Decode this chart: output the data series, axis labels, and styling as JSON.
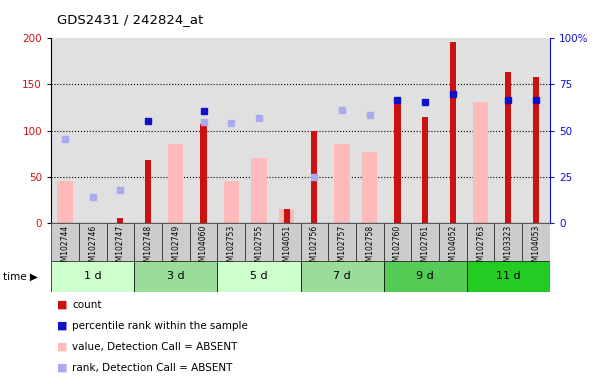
{
  "title": "GDS2431 / 242824_at",
  "samples": [
    "GSM102744",
    "GSM102746",
    "GSM102747",
    "GSM102748",
    "GSM102749",
    "GSM104060",
    "GSM102753",
    "GSM102755",
    "GSM104051",
    "GSM102756",
    "GSM102757",
    "GSM102758",
    "GSM102760",
    "GSM102761",
    "GSM104052",
    "GSM102763",
    "GSM103323",
    "GSM104053"
  ],
  "time_groups": [
    {
      "label": "1 d",
      "start": 0,
      "end": 3
    },
    {
      "label": "3 d",
      "start": 3,
      "end": 6
    },
    {
      "label": "5 d",
      "start": 6,
      "end": 9
    },
    {
      "label": "7 d",
      "start": 9,
      "end": 12
    },
    {
      "label": "9 d",
      "start": 12,
      "end": 15
    },
    {
      "label": "11 d",
      "start": 15,
      "end": 18
    }
  ],
  "group_colors": [
    "#ccffcc",
    "#99dd99",
    "#ccffcc",
    "#99dd99",
    "#55cc55",
    "#22cc22"
  ],
  "count_values": [
    0,
    0,
    5,
    68,
    0,
    107,
    0,
    0,
    15,
    100,
    0,
    0,
    133,
    115,
    196,
    0,
    163,
    158
  ],
  "percentile_rank": [
    null,
    null,
    null,
    110,
    null,
    121,
    null,
    null,
    null,
    null,
    null,
    null,
    133,
    131,
    140,
    null,
    133,
    133
  ],
  "absent_value": [
    45,
    null,
    null,
    null,
    85,
    null,
    45,
    70,
    15,
    null,
    85,
    77,
    null,
    null,
    null,
    131,
    null,
    null
  ],
  "absent_rank": [
    91,
    28,
    35,
    null,
    null,
    109,
    108,
    114,
    null,
    50,
    122,
    117,
    null,
    null,
    null,
    null,
    null,
    null
  ],
  "ylim_left": [
    0,
    200
  ],
  "ylim_right": [
    0,
    100
  ],
  "left_ticks": [
    0,
    50,
    100,
    150,
    200
  ],
  "right_ticks": [
    0,
    25,
    50,
    75,
    100
  ],
  "right_tick_labels": [
    "0",
    "25",
    "50",
    "75",
    "100%"
  ],
  "bar_color": "#cc1111",
  "percentile_color": "#1111cc",
  "absent_bar_color": "#ffbbbb",
  "absent_rank_color": "#aaaaee",
  "bg_color": "#e0e0e0",
  "left_tick_color": "#cc1111",
  "right_tick_color": "#1111cc"
}
